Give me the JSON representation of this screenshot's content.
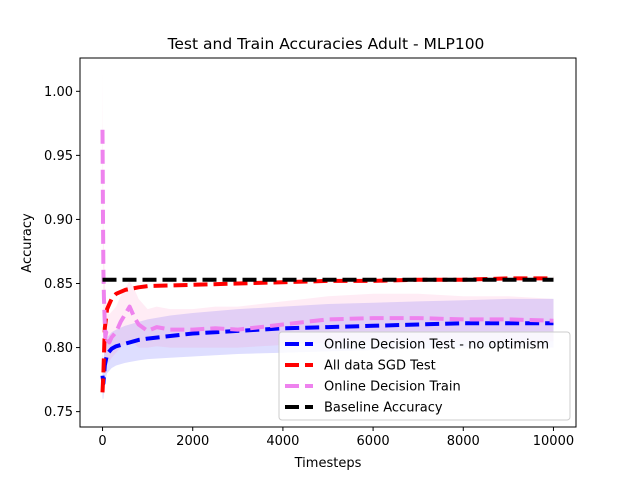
{
  "chart_data": {
    "type": "line",
    "title": "Test and Train Accuracies Adult - MLP100",
    "xlabel": "Timesteps",
    "ylabel": "Accuracy",
    "xlim": [
      -500,
      10500
    ],
    "ylim": [
      0.738,
      1.026
    ],
    "xticks": [
      0,
      2000,
      4000,
      6000,
      8000,
      10000
    ],
    "xtick_labels": [
      "0",
      "2000",
      "4000",
      "6000",
      "8000",
      "10000"
    ],
    "yticks": [
      0.75,
      0.8,
      0.85,
      0.9,
      0.95,
      1.0
    ],
    "ytick_labels": [
      "0.75",
      "0.80",
      "0.85",
      "0.90",
      "0.95",
      "1.00"
    ],
    "grid": false,
    "legend_position": "lower-right",
    "series": [
      {
        "name": "Online Decision Test - no optimism",
        "color": "#0000ff",
        "band_color": "#0000ff",
        "x": [
          0,
          20,
          50,
          100,
          200,
          300,
          500,
          800,
          1000,
          1500,
          2000,
          3000,
          4000,
          5000,
          6000,
          7000,
          8000,
          9000,
          10000
        ],
        "y": [
          0.778,
          0.772,
          0.786,
          0.795,
          0.799,
          0.801,
          0.803,
          0.806,
          0.807,
          0.809,
          0.811,
          0.813,
          0.815,
          0.816,
          0.817,
          0.818,
          0.819,
          0.819,
          0.819
        ],
        "lower": [
          0.76,
          0.76,
          0.772,
          0.78,
          0.784,
          0.786,
          0.788,
          0.79,
          0.791,
          0.792,
          0.793,
          0.795,
          0.796,
          0.797,
          0.798,
          0.799,
          0.8,
          0.8,
          0.8
        ],
        "upper": [
          0.796,
          0.79,
          0.8,
          0.808,
          0.812,
          0.814,
          0.817,
          0.82,
          0.822,
          0.825,
          0.827,
          0.83,
          0.832,
          0.834,
          0.835,
          0.836,
          0.837,
          0.838,
          0.838
        ]
      },
      {
        "name": "All data SGD Test",
        "color": "#ff0000",
        "x": [
          0,
          20,
          50,
          100,
          150,
          200,
          300,
          500,
          800,
          1000,
          2000,
          3000,
          4000,
          5000,
          6000,
          7000,
          8000,
          9000,
          10000
        ],
        "y": [
          0.765,
          0.78,
          0.815,
          0.83,
          0.834,
          0.838,
          0.842,
          0.845,
          0.847,
          0.848,
          0.849,
          0.85,
          0.851,
          0.852,
          0.852,
          0.853,
          0.853,
          0.854,
          0.854
        ]
      },
      {
        "name": "Online Decision Train",
        "color": "#ee82ee",
        "band_color": "#ff69b4",
        "x": [
          0,
          10,
          20,
          30,
          40,
          60,
          80,
          100,
          150,
          200,
          300,
          400,
          500,
          600,
          700,
          800,
          1000,
          1200,
          1500,
          2000,
          2500,
          3000,
          3500,
          4000,
          4500,
          5000,
          6000,
          7000,
          8000,
          9000,
          10000
        ],
        "y": [
          0.97,
          0.9,
          0.86,
          0.84,
          0.83,
          0.808,
          0.812,
          0.806,
          0.804,
          0.808,
          0.812,
          0.82,
          0.826,
          0.832,
          0.824,
          0.818,
          0.813,
          0.816,
          0.814,
          0.814,
          0.815,
          0.814,
          0.816,
          0.818,
          0.82,
          0.822,
          0.823,
          0.823,
          0.822,
          0.822,
          0.821
        ],
        "lower": [
          0.93,
          0.86,
          0.82,
          0.8,
          0.79,
          0.785,
          0.79,
          0.788,
          0.789,
          0.792,
          0.796,
          0.8,
          0.803,
          0.806,
          0.803,
          0.8,
          0.8,
          0.801,
          0.8,
          0.8,
          0.8,
          0.8,
          0.801,
          0.802,
          0.803,
          0.804,
          0.805,
          0.805,
          0.805,
          0.805,
          0.805
        ],
        "upper": [
          1.015,
          0.95,
          0.9,
          0.88,
          0.87,
          0.84,
          0.836,
          0.828,
          0.826,
          0.828,
          0.832,
          0.84,
          0.846,
          0.852,
          0.846,
          0.838,
          0.83,
          0.832,
          0.83,
          0.83,
          0.832,
          0.832,
          0.834,
          0.836,
          0.838,
          0.84,
          0.842,
          0.842,
          0.84,
          0.84,
          0.838
        ]
      },
      {
        "name": "Baseline Accuracy",
        "color": "#000000",
        "x": [
          0,
          10000
        ],
        "y": [
          0.853,
          0.853
        ]
      }
    ]
  }
}
